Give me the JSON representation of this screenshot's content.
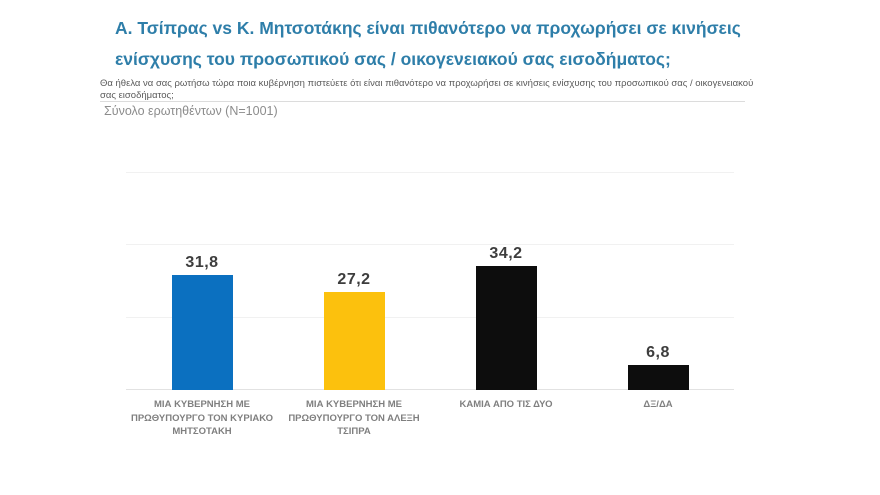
{
  "header": {
    "title": "Α. Τσίπρας vs Κ. Μητσοτάκης είναι πιθανότερο να προχωρήσει σε κινήσεις ενίσχυσης του προσωπικού σας / οικογενειακού σας εισοδήματος;",
    "title_color": "#2e7ea9",
    "question": "Θα ήθελα να σας ρωτήσω τώρα ποια κυβέρνηση πιστεύετε ότι είναι πιθανότερο να προχωρήσει σε κινήσεις ενίσχυσης του προσωπικού σας / οικογενειακού σας εισοδήματος;",
    "sample_note": "Σύνολο ερωτηθέντων (N=1001)"
  },
  "chart_data": {
    "type": "bar",
    "title": "Α. Τσίπρας vs Κ. Μητσοτάκης είναι πιθανότερο να προχωρήσει σε κινήσεις ενίσχυσης του προσωπικού σας / οικογενειακού σας εισοδήματος;",
    "categories": [
      "ΜΙΑ ΚΥΒΕΡΝΗΣΗ ΜΕ ΠΡΩΘΥΠΟΥΡΓΟ ΤΟΝ ΚΥΡΙΑΚΟ ΜΗΤΣΟΤΑΚΗ",
      "ΜΙΑ ΚΥΒΕΡΝΗΣΗ ΜΕ ΠΡΩΘΥΠΟΥΡΓΟ ΤΟΝ ΑΛΕΞΗ ΤΣΙΠΡΑ",
      "ΚΑΜΙΑ ΑΠΟ ΤΙΣ ΔΥΟ",
      "ΔΞ/ΔΑ"
    ],
    "values": [
      31.8,
      27.2,
      34.2,
      6.8
    ],
    "value_labels": [
      "31,8",
      "27,2",
      "34,2",
      "6,8"
    ],
    "colors": [
      "#0b70c0",
      "#fcc10d",
      "#0d0d0d",
      "#0d0d0d"
    ],
    "unit": "%",
    "xlabel": "",
    "ylabel": "",
    "ylim": [
      0,
      60
    ],
    "grid_interval": 20,
    "grid": true,
    "legend": "none"
  }
}
